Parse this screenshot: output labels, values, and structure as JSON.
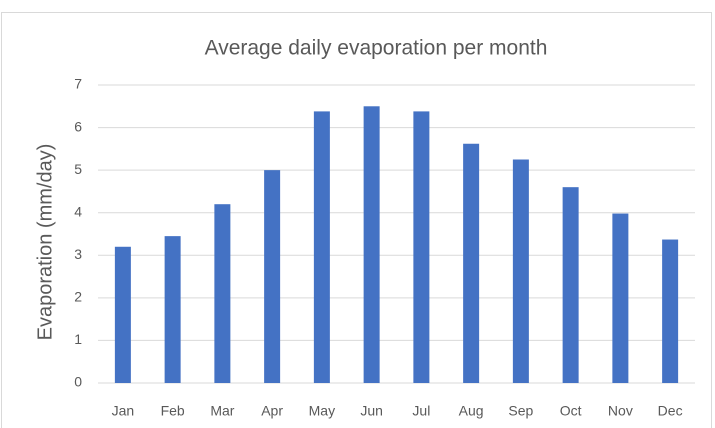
{
  "chart_data": {
    "type": "bar",
    "title": "Average daily evaporation per month",
    "y_label": "Evaporation (mm/day)",
    "categories": [
      "Jan",
      "Feb",
      "Mar",
      "Apr",
      "May",
      "Jun",
      "Jul",
      "Aug",
      "Sep",
      "Oct",
      "Nov",
      "Dec"
    ],
    "values": [
      3.2,
      3.45,
      4.2,
      5.0,
      6.38,
      6.5,
      6.38,
      5.62,
      5.25,
      4.6,
      3.98,
      3.37
    ],
    "color": "#4472c4",
    "ylim": [
      0,
      7
    ],
    "yticks": [
      0,
      1,
      2,
      3,
      4,
      5,
      6,
      7
    ],
    "grid": true
  }
}
